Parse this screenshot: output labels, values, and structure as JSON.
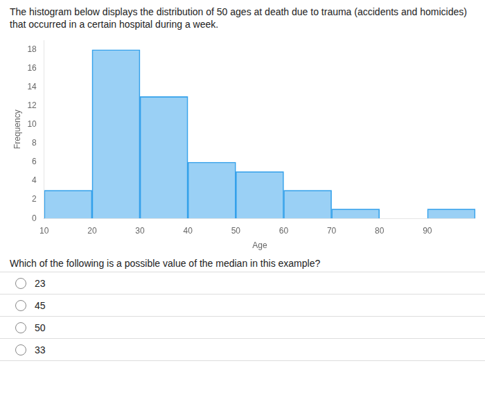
{
  "chart_data": {
    "type": "histogram",
    "title": "The histogram below displays the distribution of 50 ages at death due to trauma (accidents and homicides) that occurred in a certain hospital during a week.",
    "x_label": "Age",
    "y_label": "Frequency",
    "bins": [
      10,
      20,
      30,
      40,
      50,
      60,
      70,
      80,
      90,
      100
    ],
    "values": [
      3,
      18,
      13,
      6,
      5,
      3,
      1,
      0,
      1
    ],
    "xlim": [
      10,
      100
    ],
    "xticks": [
      10,
      20,
      30,
      40,
      50,
      60,
      70,
      80,
      90
    ],
    "ylim": [
      0,
      19
    ],
    "yticks": [
      0,
      2,
      4,
      6,
      8,
      10,
      12,
      14,
      16,
      18
    ],
    "grid": false,
    "annotations": [
      "Which of the following is a possible value of the median in this example?",
      "23",
      "45",
      "50",
      "33"
    ]
  }
}
